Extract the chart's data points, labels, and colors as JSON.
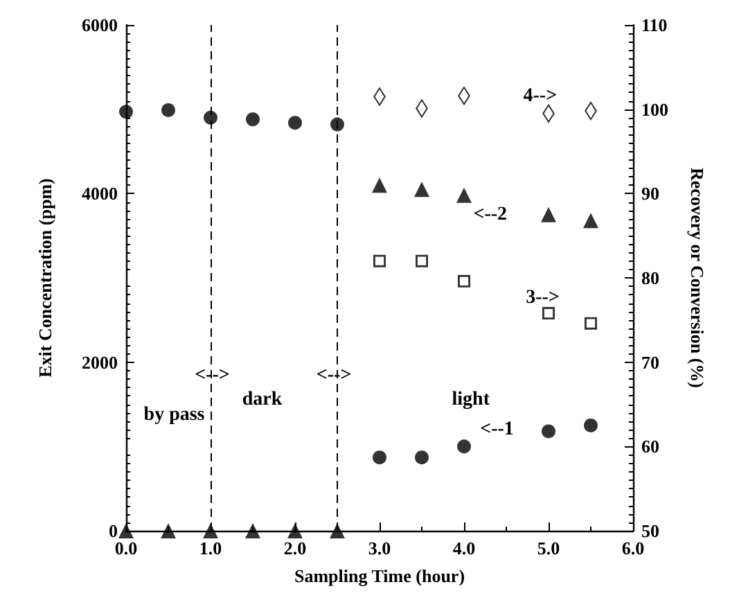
{
  "chart_data": {
    "type": "scatter",
    "xlabel": "Sampling Time (hour)",
    "ylabel": "Exit Concentration (ppm)",
    "y2label": "Recovery or Conversion (%)",
    "xlim": [
      0,
      6
    ],
    "xticks": [
      {
        "value": 0,
        "label": "0.0"
      },
      {
        "value": 1,
        "label": "1.0"
      },
      {
        "value": 2,
        "label": "2.0"
      },
      {
        "value": 3,
        "label": "3.0"
      },
      {
        "value": 4,
        "label": "4.0"
      },
      {
        "value": 5,
        "label": "5.0"
      },
      {
        "value": 6,
        "label": "6.0"
      }
    ],
    "ylim": [
      0,
      6000
    ],
    "yticks": [
      0,
      2000,
      4000,
      6000
    ],
    "y2lim": [
      50,
      110
    ],
    "y2ticks": [
      50,
      60,
      70,
      80,
      90,
      100,
      110
    ],
    "grid": false,
    "series": [
      {
        "color": "#000000",
        "marker": "circle",
        "x": [
          0,
          0.5,
          1.0,
          1.5,
          2.0,
          2.5,
          3.0,
          3.5,
          4.0,
          5.0,
          5.5
        ],
        "values": [
          4970,
          4990,
          4900,
          4880,
          4840,
          4820,
          870,
          870,
          1000,
          1180,
          1250
        ]
      },
      {
        "color": "#000000",
        "marker": "triangle",
        "x": [
          0,
          0.5,
          1.0,
          1.5,
          2.0,
          2.5,
          3.0,
          3.5,
          4.0,
          5.0,
          5.5
        ],
        "values": [
          0,
          0,
          0,
          0,
          0,
          0,
          4100,
          4050,
          3980,
          3750,
          3680
        ]
      },
      {
        "color": "#000000",
        "marker": "square",
        "axis": "y2",
        "x": [
          3.0,
          3.5,
          4.0,
          5.0,
          5.5
        ],
        "values": [
          82.0,
          82.0,
          79.6,
          75.8,
          74.6
        ]
      },
      {
        "color": "#000000",
        "marker": "diamond",
        "axis": "y2",
        "x": [
          3.0,
          3.5,
          4.0,
          5.0,
          5.5
        ],
        "values": [
          101.5,
          100.1,
          101.6,
          99.5,
          99.8
        ]
      }
    ],
    "ref_lines": [
      {
        "axis": "x",
        "value": 1.0,
        "line_style": "dashed"
      },
      {
        "axis": "x",
        "value": 2.5,
        "line_style": "dashed"
      }
    ],
    "annotations": [
      "4-->",
      "<--2",
      "3-->",
      "<--1",
      "light",
      "dark",
      "by pass",
      "<-->",
      "<-->"
    ]
  }
}
